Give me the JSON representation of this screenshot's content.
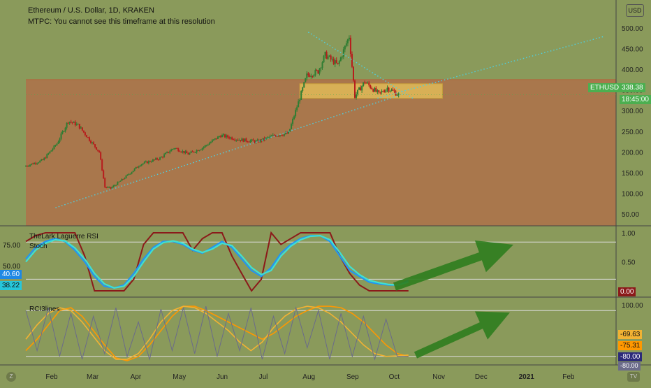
{
  "header": {
    "title": "Ethereum / U.S. Dollar, 1D, KRAKEN",
    "note": "MTPC: You cannot see this timeframe at this resolution",
    "currency_button": "USD"
  },
  "price_tags": {
    "symbol_label": "ETHUSD",
    "price": "338.38",
    "countdown": "18:45:00"
  },
  "panes": {
    "rsi_title": "TheLark Laguerre RSI",
    "stoch_title": "Stoch",
    "rci_title": "RCI3lines"
  },
  "left_tags": {
    "level_75": "75.00",
    "level_50": "50.00",
    "tag_a": "40.60",
    "tag_b": "38.22"
  },
  "right_tags": {
    "rsi": "0.00",
    "rci_1": "-69.63",
    "rci_2": "-75.31",
    "rci_3": "-80.00",
    "rci_partial": "-80.00"
  },
  "corner_labels": {
    "left": "Z",
    "right": "TV"
  },
  "colors": {
    "upper_bg": "#8a9a5b",
    "lower_bg": "#a9774c",
    "box": "#e8c35a",
    "up_candle": "#2e7d32",
    "down_candle": "#b71c1c",
    "trend_dots": "#4dd0e1",
    "arrow": "#2e7d1e",
    "price_tag": "#4caf50",
    "rsi_red": "#8b1a1a",
    "stoch_k": "#2196f3",
    "stoch_d": "#40e0d0",
    "rci_orange": "#ff9800",
    "rci_gold": "#f2b233",
    "rci_gray": "#6b6b8a"
  },
  "chart_data": [
    {
      "type": "candlestick",
      "title": "Ethereum / U.S. Dollar, 1D, KRAKEN",
      "ylim": [
        20,
        510
      ],
      "y_ticks": [
        50,
        100,
        150,
        200,
        250,
        300,
        350,
        400,
        450,
        500
      ],
      "y_tick_labels": [
        "50.00",
        "100.00",
        "150.00",
        "200.00",
        "250.00",
        "300.00",
        "350.00",
        "400.00",
        "450.00",
        "500.00"
      ],
      "x_labels": [
        "Feb",
        "Mar",
        "Apr",
        "May",
        "Jun",
        "Jul",
        "Aug",
        "Sep",
        "Oct",
        "Nov",
        "Dec",
        "2021",
        "Feb"
      ],
      "close_path": [
        {
          "date": "2020-01-15",
          "close": 165
        },
        {
          "date": "2020-01-28",
          "close": 180
        },
        {
          "date": "2020-02-07",
          "close": 220
        },
        {
          "date": "2020-02-15",
          "close": 275
        },
        {
          "date": "2020-02-22",
          "close": 265
        },
        {
          "date": "2020-03-01",
          "close": 230
        },
        {
          "date": "2020-03-08",
          "close": 200
        },
        {
          "date": "2020-03-12",
          "close": 115
        },
        {
          "date": "2020-03-16",
          "close": 112
        },
        {
          "date": "2020-03-25",
          "close": 135
        },
        {
          "date": "2020-04-06",
          "close": 170
        },
        {
          "date": "2020-04-20",
          "close": 185
        },
        {
          "date": "2020-04-30",
          "close": 210
        },
        {
          "date": "2020-05-10",
          "close": 195
        },
        {
          "date": "2020-05-20",
          "close": 210
        },
        {
          "date": "2020-06-02",
          "close": 240
        },
        {
          "date": "2020-06-15",
          "close": 230
        },
        {
          "date": "2020-06-28",
          "close": 225
        },
        {
          "date": "2020-07-10",
          "close": 240
        },
        {
          "date": "2020-07-20",
          "close": 245
        },
        {
          "date": "2020-07-27",
          "close": 320
        },
        {
          "date": "2020-08-02",
          "close": 385
        },
        {
          "date": "2020-08-10",
          "close": 395
        },
        {
          "date": "2020-08-15",
          "close": 435
        },
        {
          "date": "2020-08-24",
          "close": 410
        },
        {
          "date": "2020-09-01",
          "close": 480
        },
        {
          "date": "2020-09-05",
          "close": 335
        },
        {
          "date": "2020-09-12",
          "close": 370
        },
        {
          "date": "2020-09-22",
          "close": 340
        },
        {
          "date": "2020-09-28",
          "close": 355
        },
        {
          "date": "2020-10-06",
          "close": 338.38
        }
      ],
      "last_price": 338.38,
      "support_zone": [
        330,
        365
      ],
      "trendlines": [
        {
          "name": "rising support",
          "from": {
            "date": "2020-02-05",
            "value": 65
          },
          "to": {
            "date": "2020-10-08",
            "value": 340
          }
        },
        {
          "name": "descending resistance",
          "from": {
            "date": "2020-08-02",
            "value": 490
          },
          "to": {
            "date": "2020-10-15",
            "value": 330
          }
        },
        {
          "name": "extended resistance",
          "from": {
            "date": "2020-09-20",
            "value": 330
          },
          "to": {
            "date": "2021-02-28",
            "value": 480
          }
        }
      ]
    },
    {
      "type": "line",
      "series_titles": [
        "TheLark Laguerre RSI",
        "Stoch"
      ],
      "y_ticks": [
        0.5,
        1.0
      ],
      "y_tick_labels": [
        "0.50",
        "1.00"
      ],
      "levels": [
        75,
        50
      ],
      "series": [
        {
          "values": [
            0.85,
            0.95,
            1,
            1,
            1,
            1,
            0.6,
            0,
            0,
            0,
            0,
            0.2,
            0.8,
            1,
            1,
            1,
            1,
            0.7,
            0.9,
            1,
            1,
            0.6,
            0.3,
            0,
            0.2,
            1,
            0.8,
            0.9,
            1,
            1,
            1,
            1,
            0.6,
            0.3,
            0.1,
            0,
            0,
            0,
            0,
            0
          ]
        },
        {
          "values": [
            0.55,
            0.75,
            0.85,
            0.9,
            0.85,
            0.7,
            0.5,
            0.25,
            0.08,
            0.05,
            0.1,
            0.3,
            0.55,
            0.75,
            0.85,
            0.85,
            0.8,
            0.7,
            0.65,
            0.75,
            0.85,
            0.75,
            0.55,
            0.35,
            0.25,
            0.4,
            0.65,
            0.8,
            0.9,
            0.95,
            0.95,
            0.85,
            0.6,
            0.35,
            0.25,
            0.15,
            0.12,
            0.1,
            0.1,
            0.18
          ]
        },
        {
          "values": [
            0.5,
            0.7,
            0.82,
            0.88,
            0.86,
            0.74,
            0.55,
            0.3,
            0.12,
            0.05,
            0.08,
            0.25,
            0.5,
            0.72,
            0.83,
            0.86,
            0.82,
            0.72,
            0.66,
            0.72,
            0.82,
            0.78,
            0.6,
            0.4,
            0.28,
            0.35,
            0.6,
            0.77,
            0.88,
            0.94,
            0.95,
            0.88,
            0.66,
            0.42,
            0.28,
            0.18,
            0.14,
            0.11,
            0.1,
            0.15
          ]
        }
      ]
    },
    {
      "type": "line",
      "series_title": "RCI3lines",
      "y_ticks": [
        100
      ],
      "y_tick_labels": [
        "100.00"
      ],
      "series": [
        {
          "values": [
            -60,
            -20,
            30,
            80,
            90,
            60,
            10,
            -40,
            -85,
            -95,
            -80,
            -40,
            10,
            60,
            95,
            95,
            80,
            60,
            40,
            20,
            0,
            -20,
            0,
            30,
            60,
            80,
            95,
            95,
            90,
            70,
            40,
            0,
            -40,
            -70,
            -80
          ]
        },
        {
          "values": [
            -20,
            30,
            70,
            90,
            80,
            40,
            -10,
            -60,
            -90,
            -90,
            -70,
            -20,
            40,
            80,
            95,
            90,
            70,
            40,
            10,
            -30,
            -60,
            -30,
            20,
            60,
            85,
            95,
            90,
            70,
            40,
            0,
            -40,
            -70,
            -80,
            -78,
            -75
          ]
        },
        {
          "values": [
            80,
            -60,
            90,
            -80,
            70,
            -90,
            60,
            -70,
            90,
            -80,
            40,
            -90,
            85,
            -60,
            90,
            -70,
            95,
            -80,
            70,
            -60,
            90,
            -90,
            60,
            -70,
            90,
            -50,
            80,
            -90,
            70,
            -80,
            60,
            -90,
            50,
            -80,
            -80
          ]
        }
      ]
    }
  ]
}
